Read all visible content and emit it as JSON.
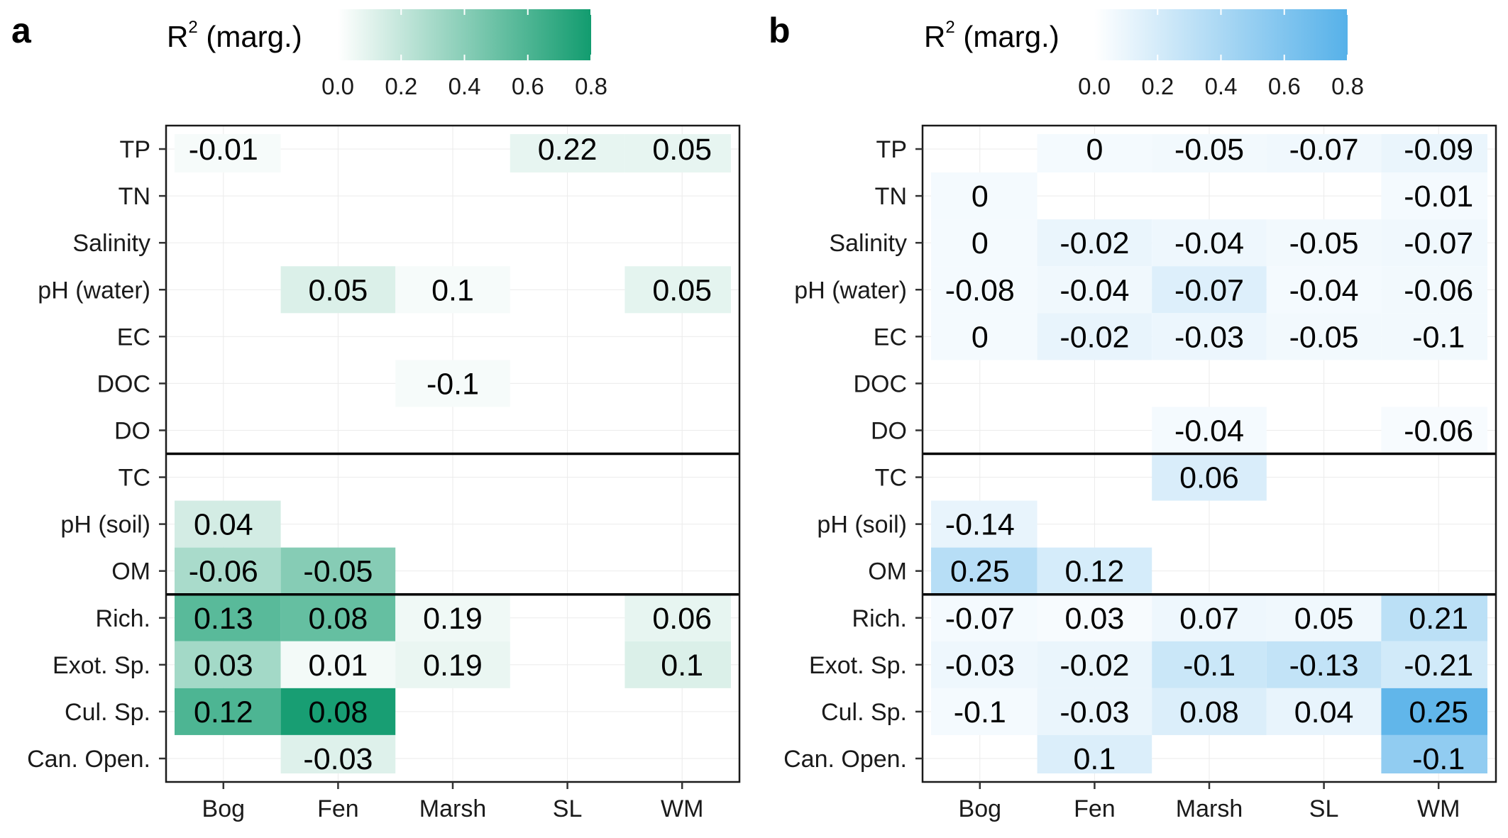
{
  "chart_data": [
    {
      "type": "heatmap",
      "panel_label": "a",
      "legend": {
        "title": "R",
        "title_sup": "2",
        "title_suffix": "(marg.)",
        "ticks": [
          "0.0",
          "0.2",
          "0.4",
          "0.6",
          "0.8"
        ],
        "range": [
          0,
          0.8
        ],
        "color_low": "#ffffff",
        "color_high": "#129c6f"
      },
      "x_categories": [
        "Bog",
        "Fen",
        "Marsh",
        "SL",
        "WM"
      ],
      "y_categories": [
        "TP",
        "TN",
        "Salinity",
        "pH (water)",
        "EC",
        "DOC",
        "DO",
        "TC",
        "pH (soil)",
        "OM",
        "Rich.",
        "Exot. Sp.",
        "Cul. Sp.",
        "Can. Open."
      ],
      "group_separators_after": [
        "DO",
        "OM"
      ],
      "cells": [
        {
          "x": "Bog",
          "y": "TP",
          "label": "-0.01",
          "r2": 0.03
        },
        {
          "x": "SL",
          "y": "TP",
          "label": "0.22",
          "r2": 0.08
        },
        {
          "x": "WM",
          "y": "TP",
          "label": "0.05",
          "r2": 0.08
        },
        {
          "x": "Fen",
          "y": "pH (water)",
          "label": "0.05",
          "r2": 0.12
        },
        {
          "x": "Marsh",
          "y": "pH (water)",
          "label": "0.1",
          "r2": 0.03
        },
        {
          "x": "WM",
          "y": "pH (water)",
          "label": "0.05",
          "r2": 0.09
        },
        {
          "x": "Marsh",
          "y": "DOC",
          "label": "-0.1",
          "r2": 0.03
        },
        {
          "x": "Bog",
          "y": "pH (soil)",
          "label": "0.04",
          "r2": 0.15
        },
        {
          "x": "Bog",
          "y": "OM",
          "label": "-0.06",
          "r2": 0.29
        },
        {
          "x": "Fen",
          "y": "OM",
          "label": "-0.05",
          "r2": 0.41
        },
        {
          "x": "Bog",
          "y": "Rich.",
          "label": "0.13",
          "r2": 0.56
        },
        {
          "x": "Fen",
          "y": "Rich.",
          "label": "0.08",
          "r2": 0.52
        },
        {
          "x": "Marsh",
          "y": "Rich.",
          "label": "0.19",
          "r2": 0.05
        },
        {
          "x": "WM",
          "y": "Rich.",
          "label": "0.06",
          "r2": 0.08
        },
        {
          "x": "Bog",
          "y": "Exot. Sp.",
          "label": "0.03",
          "r2": 0.31
        },
        {
          "x": "Fen",
          "y": "Exot. Sp.",
          "label": "0.01",
          "r2": 0.04
        },
        {
          "x": "Marsh",
          "y": "Exot. Sp.",
          "label": "0.19",
          "r2": 0.07
        },
        {
          "x": "WM",
          "y": "Exot. Sp.",
          "label": "0.1",
          "r2": 0.12
        },
        {
          "x": "Bog",
          "y": "Cul. Sp.",
          "label": "0.12",
          "r2": 0.6
        },
        {
          "x": "Fen",
          "y": "Cul. Sp.",
          "label": "0.08",
          "r2": 0.78
        },
        {
          "x": "Fen",
          "y": "Can. Open.",
          "label": "-0.03",
          "r2": 0.11
        }
      ]
    },
    {
      "type": "heatmap",
      "panel_label": "b",
      "legend": {
        "title": "R",
        "title_sup": "2",
        "title_suffix": "(marg.)",
        "ticks": [
          "0.0",
          "0.2",
          "0.4",
          "0.6",
          "0.8"
        ],
        "range": [
          0,
          0.8
        ],
        "color_low": "#ffffff",
        "color_high": "#56b1e9"
      },
      "x_categories": [
        "Bog",
        "Fen",
        "Marsh",
        "SL",
        "WM"
      ],
      "y_categories": [
        "TP",
        "TN",
        "Salinity",
        "pH (water)",
        "EC",
        "DOC",
        "DO",
        "TC",
        "pH (soil)",
        "OM",
        "Rich.",
        "Exot. Sp.",
        "Cul. Sp.",
        "Can. Open."
      ],
      "group_separators_after": [
        "DO",
        "OM"
      ],
      "cells": [
        {
          "x": "Fen",
          "y": "TP",
          "label": "0",
          "r2": 0.05
        },
        {
          "x": "Marsh",
          "y": "TP",
          "label": "-0.05",
          "r2": 0.06
        },
        {
          "x": "SL",
          "y": "TP",
          "label": "-0.07",
          "r2": 0.07
        },
        {
          "x": "WM",
          "y": "TP",
          "label": "-0.09",
          "r2": 0.1
        },
        {
          "x": "Bog",
          "y": "TN",
          "label": "0",
          "r2": 0.05
        },
        {
          "x": "WM",
          "y": "TN",
          "label": "-0.01",
          "r2": 0.05
        },
        {
          "x": "Bog",
          "y": "Salinity",
          "label": "0",
          "r2": 0.05
        },
        {
          "x": "Fen",
          "y": "Salinity",
          "label": "-0.02",
          "r2": 0.1
        },
        {
          "x": "Marsh",
          "y": "Salinity",
          "label": "-0.04",
          "r2": 0.08
        },
        {
          "x": "SL",
          "y": "Salinity",
          "label": "-0.05",
          "r2": 0.06
        },
        {
          "x": "WM",
          "y": "Salinity",
          "label": "-0.07",
          "r2": 0.07
        },
        {
          "x": "Bog",
          "y": "pH (water)",
          "label": "-0.08",
          "r2": 0.05
        },
        {
          "x": "Fen",
          "y": "pH (water)",
          "label": "-0.04",
          "r2": 0.07
        },
        {
          "x": "Marsh",
          "y": "pH (water)",
          "label": "-0.07",
          "r2": 0.16
        },
        {
          "x": "SL",
          "y": "pH (water)",
          "label": "-0.04",
          "r2": 0.05
        },
        {
          "x": "WM",
          "y": "pH (water)",
          "label": "-0.06",
          "r2": 0.06
        },
        {
          "x": "Bog",
          "y": "EC",
          "label": "0",
          "r2": 0.05
        },
        {
          "x": "Fen",
          "y": "EC",
          "label": "-0.02",
          "r2": 0.11
        },
        {
          "x": "Marsh",
          "y": "EC",
          "label": "-0.03",
          "r2": 0.09
        },
        {
          "x": "SL",
          "y": "EC",
          "label": "-0.05",
          "r2": 0.06
        },
        {
          "x": "WM",
          "y": "EC",
          "label": "-0.1",
          "r2": 0.06
        },
        {
          "x": "Marsh",
          "y": "DO",
          "label": "-0.04",
          "r2": 0.05
        },
        {
          "x": "WM",
          "y": "DO",
          "label": "-0.06",
          "r2": 0.04
        },
        {
          "x": "Marsh",
          "y": "TC",
          "label": "0.06",
          "r2": 0.18
        },
        {
          "x": "Bog",
          "y": "pH (soil)",
          "label": "-0.14",
          "r2": 0.11
        },
        {
          "x": "Bog",
          "y": "OM",
          "label": "0.25",
          "r2": 0.34
        },
        {
          "x": "Fen",
          "y": "OM",
          "label": "0.12",
          "r2": 0.2
        },
        {
          "x": "Bog",
          "y": "Rich.",
          "label": "-0.07",
          "r2": 0.05
        },
        {
          "x": "Fen",
          "y": "Rich.",
          "label": "0.03",
          "r2": 0.04
        },
        {
          "x": "Marsh",
          "y": "Rich.",
          "label": "0.07",
          "r2": 0.08
        },
        {
          "x": "SL",
          "y": "Rich.",
          "label": "0.05",
          "r2": 0.07
        },
        {
          "x": "WM",
          "y": "Rich.",
          "label": "0.21",
          "r2": 0.32
        },
        {
          "x": "Bog",
          "y": "Exot. Sp.",
          "label": "-0.03",
          "r2": 0.08
        },
        {
          "x": "Fen",
          "y": "Exot. Sp.",
          "label": "-0.02",
          "r2": 0.1
        },
        {
          "x": "Marsh",
          "y": "Exot. Sp.",
          "label": "-0.1",
          "r2": 0.25
        },
        {
          "x": "SL",
          "y": "Exot. Sp.",
          "label": "-0.13",
          "r2": 0.29
        },
        {
          "x": "WM",
          "y": "Exot. Sp.",
          "label": "-0.21",
          "r2": 0.22
        },
        {
          "x": "Bog",
          "y": "Cul. Sp.",
          "label": "-0.1",
          "r2": 0.05
        },
        {
          "x": "Fen",
          "y": "Cul. Sp.",
          "label": "-0.03",
          "r2": 0.1
        },
        {
          "x": "Marsh",
          "y": "Cul. Sp.",
          "label": "0.08",
          "r2": 0.17
        },
        {
          "x": "SL",
          "y": "Cul. Sp.",
          "label": "0.04",
          "r2": 0.11
        },
        {
          "x": "WM",
          "y": "Cul. Sp.",
          "label": "0.25",
          "r2": 0.75
        },
        {
          "x": "Fen",
          "y": "Can. Open.",
          "label": "0.1",
          "r2": 0.17
        },
        {
          "x": "WM",
          "y": "Can. Open.",
          "label": "-0.1",
          "r2": 0.52
        }
      ]
    }
  ]
}
